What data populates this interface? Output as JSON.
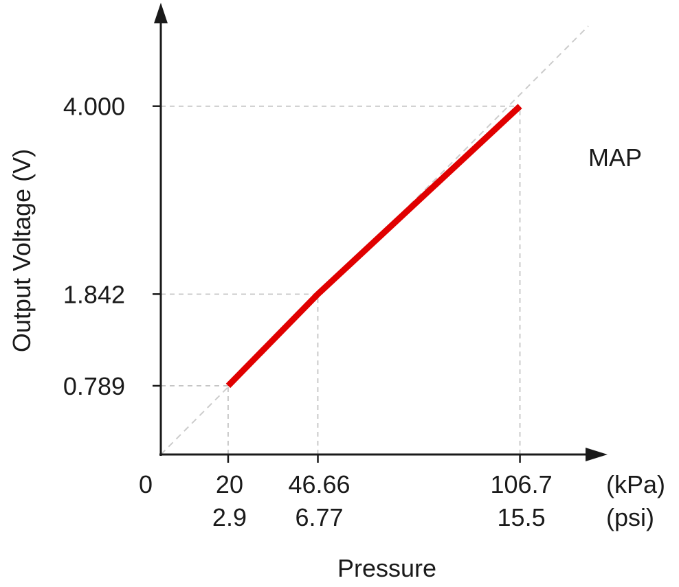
{
  "chart_data": {
    "type": "line",
    "title": "",
    "xlabel": "Pressure",
    "ylabel": "Output Voltage (V)",
    "annotation": "MAP",
    "x_origin_label": "0",
    "x_unit_primary": "(kPa)",
    "x_unit_secondary": "(psi)",
    "xlim": [
      0,
      127
    ],
    "ylim": [
      0,
      4.92
    ],
    "x_ticks": [
      {
        "kpa": 20,
        "kpa_label": "20",
        "psi_label": "2.9"
      },
      {
        "kpa": 46.66,
        "kpa_label": "46.66",
        "psi_label": "6.77"
      },
      {
        "kpa": 106.7,
        "kpa_label": "106.7",
        "psi_label": "15.5"
      }
    ],
    "y_ticks": [
      {
        "value": 0.789,
        "label": "0.789"
      },
      {
        "value": 1.842,
        "label": "1.842"
      },
      {
        "value": 4.0,
        "label": "4.000"
      }
    ],
    "series": [
      {
        "color": "#e00000",
        "points": [
          {
            "x": 20,
            "y": 0.789
          },
          {
            "x": 46.66,
            "y": 1.842
          },
          {
            "x": 106.7,
            "y": 4.0
          }
        ]
      }
    ],
    "reference_line": {
      "from": [
        0,
        0
      ],
      "to": [
        127,
        4.92
      ],
      "style": "dashed",
      "color": "#cccccc"
    },
    "grid": false
  }
}
